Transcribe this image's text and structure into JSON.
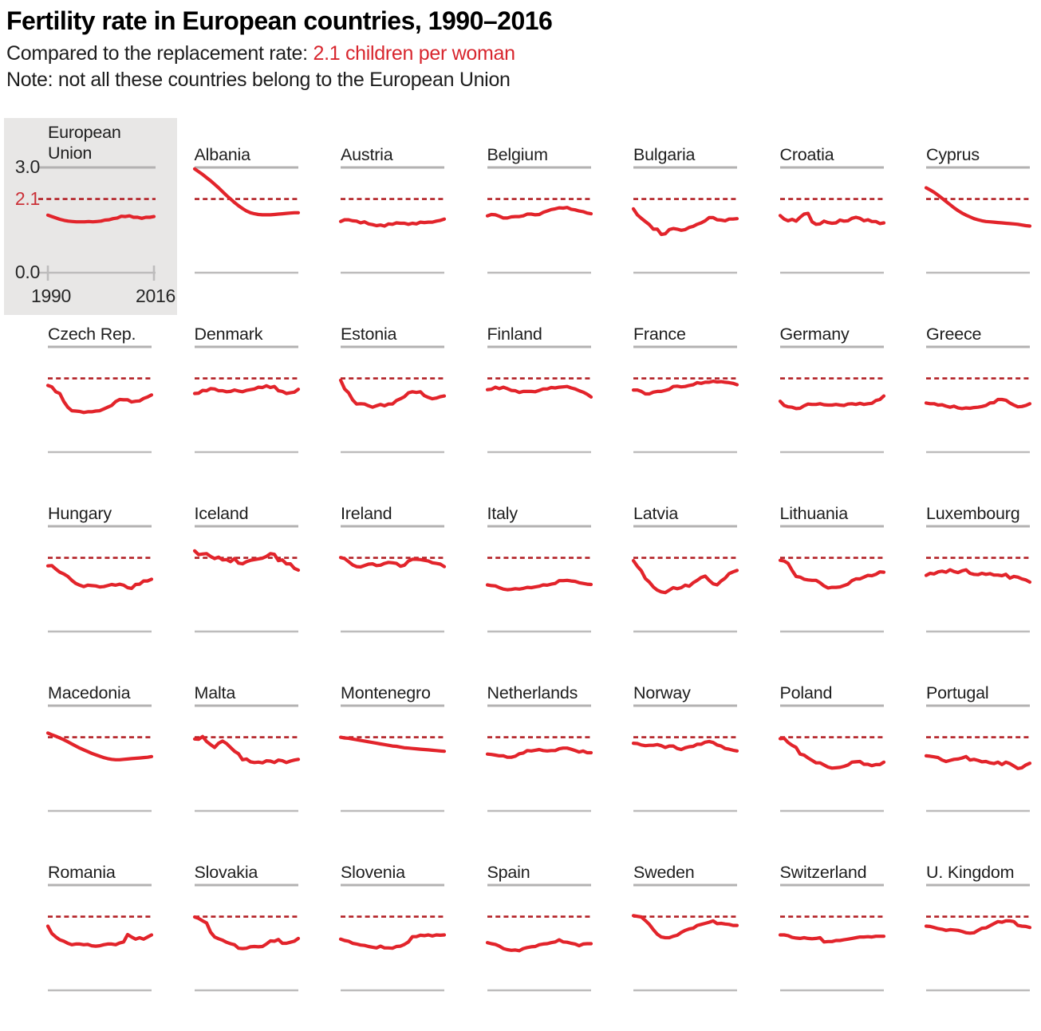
{
  "header": {
    "title": "Fertility rate in European countries, 1990–2016",
    "subtitle_prefix": "Compared to the replacement rate: ",
    "subtitle_highlight": "2.1 children per woman",
    "note": "Note: not all these countries belong to the European Union"
  },
  "colors": {
    "line_red": "#e2242b",
    "replacement_dash_red": "#b32126",
    "replacement_label_red": "#cb3138",
    "grid_gray": "#b3b2b2",
    "baseline_gray": "#bdbcbc",
    "eu_panel_bg": "#e8e7e6",
    "text": "#1d1d1d"
  },
  "chart_data": {
    "type": "line",
    "layout": "small-multiples",
    "grid": {
      "columns": 7,
      "rows": 5
    },
    "x_range": [
      1990,
      2016
    ],
    "y_range": [
      0.0,
      3.0
    ],
    "replacement_rate": 2.1,
    "y_ticks": [
      "3.0",
      "2.1",
      "0.0"
    ],
    "x_tick_labels": [
      "1990",
      "2016"
    ],
    "ylabel": "children per woman",
    "legend_position": "none",
    "gridlines": "top and bottom only",
    "series": [
      {
        "name": "European Union",
        "highlight_panel": true,
        "values": [
          1.64,
          1.6,
          1.56,
          1.52,
          1.49,
          1.47,
          1.46,
          1.45,
          1.45,
          1.45,
          1.46,
          1.45,
          1.46,
          1.47,
          1.5,
          1.51,
          1.54,
          1.56,
          1.61,
          1.6,
          1.62,
          1.58,
          1.58,
          1.55,
          1.58,
          1.58,
          1.6
        ]
      },
      {
        "name": "Albania",
        "values": [
          2.96,
          2.88,
          2.8,
          2.71,
          2.62,
          2.52,
          2.42,
          2.31,
          2.2,
          2.1,
          2.0,
          1.91,
          1.83,
          1.76,
          1.71,
          1.68,
          1.66,
          1.65,
          1.65,
          1.65,
          1.66,
          1.67,
          1.68,
          1.69,
          1.7,
          1.71,
          1.71
        ]
      },
      {
        "name": "Austria",
        "values": [
          1.46,
          1.51,
          1.51,
          1.48,
          1.47,
          1.42,
          1.45,
          1.39,
          1.37,
          1.34,
          1.36,
          1.33,
          1.39,
          1.38,
          1.42,
          1.41,
          1.41,
          1.38,
          1.41,
          1.39,
          1.44,
          1.43,
          1.44,
          1.44,
          1.47,
          1.49,
          1.53
        ]
      },
      {
        "name": "Belgium",
        "values": [
          1.62,
          1.66,
          1.65,
          1.61,
          1.56,
          1.56,
          1.59,
          1.6,
          1.6,
          1.62,
          1.67,
          1.67,
          1.65,
          1.66,
          1.72,
          1.76,
          1.8,
          1.82,
          1.85,
          1.84,
          1.86,
          1.81,
          1.79,
          1.76,
          1.74,
          1.7,
          1.68
        ]
      },
      {
        "name": "Bulgaria",
        "values": [
          1.82,
          1.65,
          1.55,
          1.46,
          1.37,
          1.24,
          1.24,
          1.09,
          1.11,
          1.23,
          1.26,
          1.24,
          1.21,
          1.23,
          1.29,
          1.32,
          1.38,
          1.42,
          1.48,
          1.57,
          1.57,
          1.51,
          1.5,
          1.48,
          1.53,
          1.53,
          1.54
        ]
      },
      {
        "name": "Croatia",
        "values": [
          1.63,
          1.53,
          1.48,
          1.52,
          1.47,
          1.58,
          1.67,
          1.69,
          1.45,
          1.38,
          1.39,
          1.47,
          1.43,
          1.41,
          1.42,
          1.5,
          1.47,
          1.48,
          1.55,
          1.58,
          1.55,
          1.48,
          1.51,
          1.46,
          1.46,
          1.4,
          1.42
        ]
      },
      {
        "name": "Cyprus",
        "values": [
          2.42,
          2.36,
          2.29,
          2.21,
          2.12,
          2.03,
          1.94,
          1.85,
          1.77,
          1.7,
          1.64,
          1.59,
          1.54,
          1.51,
          1.48,
          1.46,
          1.45,
          1.44,
          1.43,
          1.42,
          1.41,
          1.4,
          1.39,
          1.38,
          1.36,
          1.34,
          1.33
        ]
      },
      {
        "name": "Czech Rep.",
        "values": [
          1.9,
          1.86,
          1.72,
          1.67,
          1.44,
          1.28,
          1.18,
          1.17,
          1.16,
          1.13,
          1.15,
          1.15,
          1.17,
          1.18,
          1.23,
          1.28,
          1.33,
          1.44,
          1.5,
          1.49,
          1.49,
          1.43,
          1.45,
          1.46,
          1.53,
          1.57,
          1.63
        ]
      },
      {
        "name": "Denmark",
        "values": [
          1.67,
          1.68,
          1.76,
          1.75,
          1.81,
          1.8,
          1.75,
          1.75,
          1.72,
          1.73,
          1.77,
          1.74,
          1.72,
          1.76,
          1.78,
          1.8,
          1.85,
          1.84,
          1.89,
          1.84,
          1.87,
          1.75,
          1.73,
          1.67,
          1.69,
          1.71,
          1.79
        ]
      },
      {
        "name": "Estonia",
        "values": [
          2.05,
          1.8,
          1.69,
          1.49,
          1.37,
          1.38,
          1.37,
          1.32,
          1.28,
          1.32,
          1.36,
          1.32,
          1.37,
          1.37,
          1.47,
          1.52,
          1.58,
          1.69,
          1.72,
          1.7,
          1.72,
          1.61,
          1.56,
          1.52,
          1.54,
          1.58,
          1.6
        ]
      },
      {
        "name": "Finland",
        "values": [
          1.78,
          1.79,
          1.85,
          1.81,
          1.85,
          1.81,
          1.76,
          1.75,
          1.7,
          1.73,
          1.73,
          1.73,
          1.72,
          1.76,
          1.8,
          1.8,
          1.84,
          1.83,
          1.85,
          1.86,
          1.87,
          1.83,
          1.8,
          1.75,
          1.71,
          1.65,
          1.57
        ]
      },
      {
        "name": "France",
        "values": [
          1.77,
          1.77,
          1.73,
          1.66,
          1.66,
          1.71,
          1.73,
          1.73,
          1.76,
          1.79,
          1.87,
          1.88,
          1.86,
          1.87,
          1.9,
          1.92,
          1.98,
          1.96,
          1.99,
          1.99,
          2.02,
          2.0,
          2.01,
          1.99,
          1.98,
          1.96,
          1.92
        ]
      },
      {
        "name": "Germany",
        "values": [
          1.45,
          1.33,
          1.29,
          1.28,
          1.24,
          1.25,
          1.32,
          1.37,
          1.36,
          1.36,
          1.38,
          1.35,
          1.34,
          1.34,
          1.36,
          1.34,
          1.33,
          1.37,
          1.38,
          1.36,
          1.39,
          1.36,
          1.38,
          1.39,
          1.47,
          1.5,
          1.6
        ]
      },
      {
        "name": "Greece",
        "values": [
          1.4,
          1.38,
          1.38,
          1.34,
          1.35,
          1.31,
          1.28,
          1.31,
          1.26,
          1.24,
          1.26,
          1.25,
          1.27,
          1.28,
          1.3,
          1.33,
          1.4,
          1.41,
          1.5,
          1.5,
          1.48,
          1.4,
          1.34,
          1.29,
          1.3,
          1.33,
          1.38
        ]
      },
      {
        "name": "Hungary",
        "values": [
          1.87,
          1.88,
          1.78,
          1.69,
          1.64,
          1.57,
          1.46,
          1.37,
          1.32,
          1.28,
          1.32,
          1.31,
          1.3,
          1.27,
          1.28,
          1.31,
          1.34,
          1.32,
          1.35,
          1.32,
          1.25,
          1.23,
          1.34,
          1.35,
          1.44,
          1.44,
          1.49
        ]
      },
      {
        "name": "Iceland",
        "values": [
          2.3,
          2.19,
          2.21,
          2.22,
          2.14,
          2.08,
          2.12,
          2.04,
          2.05,
          1.99,
          2.08,
          1.95,
          1.93,
          1.99,
          2.03,
          2.05,
          2.07,
          2.09,
          2.14,
          2.22,
          2.2,
          2.02,
          2.04,
          1.93,
          1.93,
          1.8,
          1.75
        ]
      },
      {
        "name": "Ireland",
        "values": [
          2.11,
          2.08,
          1.99,
          1.9,
          1.85,
          1.84,
          1.88,
          1.92,
          1.93,
          1.88,
          1.89,
          1.94,
          1.97,
          1.96,
          1.94,
          1.86,
          1.89,
          2.01,
          2.06,
          2.06,
          2.05,
          2.03,
          2.01,
          1.96,
          1.94,
          1.92,
          1.85
        ]
      },
      {
        "name": "Italy",
        "values": [
          1.33,
          1.31,
          1.3,
          1.25,
          1.21,
          1.19,
          1.2,
          1.22,
          1.21,
          1.23,
          1.26,
          1.25,
          1.27,
          1.29,
          1.33,
          1.32,
          1.35,
          1.37,
          1.45,
          1.45,
          1.46,
          1.44,
          1.43,
          1.39,
          1.37,
          1.35,
          1.34
        ]
      },
      {
        "name": "Latvia",
        "values": [
          2.02,
          1.86,
          1.73,
          1.51,
          1.41,
          1.27,
          1.18,
          1.13,
          1.11,
          1.18,
          1.25,
          1.22,
          1.25,
          1.32,
          1.29,
          1.39,
          1.46,
          1.54,
          1.58,
          1.46,
          1.36,
          1.33,
          1.44,
          1.52,
          1.65,
          1.7,
          1.74
        ]
      },
      {
        "name": "Lithuania",
        "values": [
          2.03,
          2.01,
          1.94,
          1.74,
          1.57,
          1.55,
          1.49,
          1.47,
          1.46,
          1.46,
          1.39,
          1.3,
          1.24,
          1.26,
          1.26,
          1.27,
          1.31,
          1.35,
          1.45,
          1.5,
          1.5,
          1.55,
          1.6,
          1.59,
          1.63,
          1.7,
          1.69
        ]
      },
      {
        "name": "Luxembourg",
        "values": [
          1.6,
          1.66,
          1.64,
          1.7,
          1.72,
          1.69,
          1.76,
          1.71,
          1.68,
          1.73,
          1.76,
          1.66,
          1.63,
          1.62,
          1.66,
          1.63,
          1.65,
          1.61,
          1.61,
          1.59,
          1.63,
          1.52,
          1.57,
          1.55,
          1.5,
          1.47,
          1.41
        ]
      },
      {
        "name": "Macedonia",
        "values": [
          2.22,
          2.17,
          2.13,
          2.08,
          2.03,
          1.97,
          1.91,
          1.85,
          1.79,
          1.74,
          1.69,
          1.64,
          1.6,
          1.56,
          1.52,
          1.49,
          1.47,
          1.46,
          1.46,
          1.47,
          1.48,
          1.49,
          1.5,
          1.51,
          1.52,
          1.53,
          1.55
        ]
      },
      {
        "name": "Malta",
        "values": [
          2.05,
          2.04,
          2.12,
          1.98,
          1.89,
          1.81,
          1.93,
          1.99,
          1.92,
          1.81,
          1.7,
          1.63,
          1.46,
          1.48,
          1.4,
          1.38,
          1.39,
          1.37,
          1.43,
          1.42,
          1.38,
          1.45,
          1.43,
          1.38,
          1.42,
          1.45,
          1.47
        ]
      },
      {
        "name": "Montenegro",
        "values": [
          2.1,
          2.08,
          2.07,
          2.05,
          2.03,
          2.01,
          1.99,
          1.97,
          1.95,
          1.93,
          1.91,
          1.89,
          1.87,
          1.85,
          1.84,
          1.82,
          1.8,
          1.79,
          1.78,
          1.77,
          1.76,
          1.75,
          1.74,
          1.73,
          1.72,
          1.71,
          1.7
        ]
      },
      {
        "name": "Netherlands",
        "values": [
          1.62,
          1.61,
          1.59,
          1.57,
          1.57,
          1.53,
          1.53,
          1.56,
          1.63,
          1.65,
          1.72,
          1.71,
          1.73,
          1.75,
          1.72,
          1.71,
          1.72,
          1.72,
          1.77,
          1.79,
          1.79,
          1.76,
          1.72,
          1.68,
          1.71,
          1.66,
          1.66
        ]
      },
      {
        "name": "Norway",
        "values": [
          1.93,
          1.92,
          1.88,
          1.86,
          1.87,
          1.87,
          1.89,
          1.86,
          1.81,
          1.85,
          1.85,
          1.78,
          1.75,
          1.8,
          1.83,
          1.84,
          1.9,
          1.9,
          1.96,
          1.98,
          1.95,
          1.88,
          1.85,
          1.78,
          1.76,
          1.73,
          1.71
        ]
      },
      {
        "name": "Poland",
        "values": [
          2.06,
          2.07,
          1.95,
          1.87,
          1.81,
          1.62,
          1.59,
          1.51,
          1.44,
          1.37,
          1.37,
          1.31,
          1.25,
          1.22,
          1.23,
          1.24,
          1.27,
          1.31,
          1.39,
          1.4,
          1.41,
          1.33,
          1.33,
          1.29,
          1.32,
          1.32,
          1.39
        ]
      },
      {
        "name": "Portugal",
        "values": [
          1.57,
          1.56,
          1.54,
          1.52,
          1.45,
          1.41,
          1.44,
          1.47,
          1.48,
          1.51,
          1.55,
          1.45,
          1.47,
          1.44,
          1.4,
          1.41,
          1.37,
          1.35,
          1.39,
          1.32,
          1.39,
          1.35,
          1.28,
          1.21,
          1.23,
          1.31,
          1.36
        ]
      },
      {
        "name": "Romania",
        "values": [
          1.83,
          1.62,
          1.52,
          1.44,
          1.4,
          1.34,
          1.3,
          1.32,
          1.32,
          1.3,
          1.31,
          1.27,
          1.26,
          1.27,
          1.3,
          1.32,
          1.32,
          1.3,
          1.35,
          1.38,
          1.59,
          1.52,
          1.46,
          1.5,
          1.46,
          1.52,
          1.58
        ]
      },
      {
        "name": "Slovakia",
        "values": [
          2.09,
          2.05,
          1.98,
          1.92,
          1.66,
          1.52,
          1.47,
          1.43,
          1.37,
          1.33,
          1.3,
          1.2,
          1.19,
          1.2,
          1.24,
          1.25,
          1.24,
          1.25,
          1.32,
          1.41,
          1.4,
          1.45,
          1.34,
          1.34,
          1.37,
          1.4,
          1.48
        ]
      },
      {
        "name": "Slovenia",
        "values": [
          1.46,
          1.42,
          1.4,
          1.34,
          1.32,
          1.29,
          1.28,
          1.25,
          1.23,
          1.21,
          1.26,
          1.21,
          1.21,
          1.2,
          1.25,
          1.26,
          1.31,
          1.38,
          1.53,
          1.53,
          1.57,
          1.56,
          1.58,
          1.55,
          1.58,
          1.57,
          1.58
        ]
      },
      {
        "name": "Spain",
        "values": [
          1.36,
          1.33,
          1.31,
          1.26,
          1.19,
          1.16,
          1.14,
          1.15,
          1.13,
          1.19,
          1.22,
          1.24,
          1.25,
          1.3,
          1.32,
          1.33,
          1.36,
          1.38,
          1.44,
          1.38,
          1.37,
          1.34,
          1.32,
          1.27,
          1.32,
          1.33,
          1.33
        ]
      },
      {
        "name": "Sweden",
        "values": [
          2.13,
          2.11,
          2.09,
          1.99,
          1.88,
          1.73,
          1.6,
          1.52,
          1.5,
          1.5,
          1.54,
          1.57,
          1.65,
          1.71,
          1.75,
          1.77,
          1.85,
          1.88,
          1.91,
          1.94,
          1.98,
          1.9,
          1.91,
          1.89,
          1.88,
          1.85,
          1.85
        ]
      },
      {
        "name": "Switzerland",
        "values": [
          1.58,
          1.58,
          1.56,
          1.51,
          1.49,
          1.48,
          1.5,
          1.48,
          1.47,
          1.48,
          1.5,
          1.38,
          1.39,
          1.39,
          1.42,
          1.42,
          1.44,
          1.46,
          1.48,
          1.5,
          1.52,
          1.52,
          1.53,
          1.52,
          1.54,
          1.54,
          1.54
        ]
      },
      {
        "name": "U. Kingdom",
        "values": [
          1.83,
          1.82,
          1.79,
          1.76,
          1.74,
          1.71,
          1.73,
          1.72,
          1.71,
          1.68,
          1.64,
          1.63,
          1.64,
          1.71,
          1.77,
          1.78,
          1.84,
          1.9,
          1.96,
          1.94,
          1.98,
          1.98,
          1.96,
          1.85,
          1.83,
          1.82,
          1.79
        ]
      }
    ]
  }
}
